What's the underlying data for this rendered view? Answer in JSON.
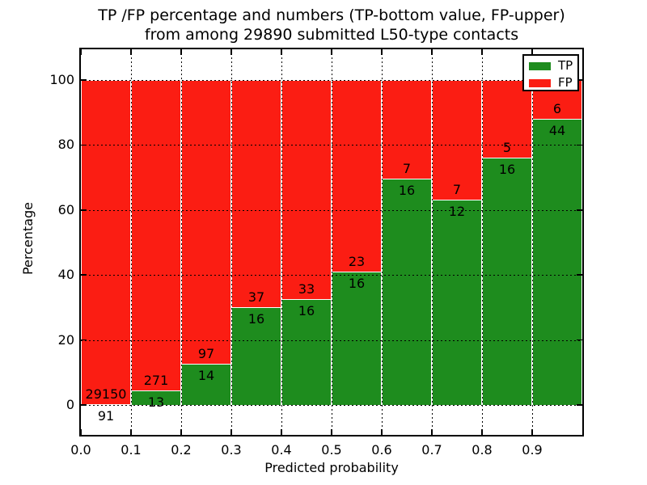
{
  "figure": {
    "title_line1": "TP /FP percentage and numbers (TP-bottom value, FP-upper)",
    "title_line2": "from among 29890 submitted L50-type contacts",
    "xlabel": "Predicted probability",
    "ylabel": "Percentage"
  },
  "legend": {
    "items": [
      {
        "label": "TP",
        "color": "#1e8c1e"
      },
      {
        "label": "FP",
        "color": "#fb1d13"
      }
    ]
  },
  "chart_data": {
    "type": "bar",
    "subtype": "stacked-percentage",
    "title": "TP /FP percentage and numbers (TP-bottom value, FP-upper) from among 29890 submitted L50-type contacts",
    "xlabel": "Predicted probability",
    "ylabel": "Percentage",
    "total_contacts": 29890,
    "bins": [
      "0.0-0.1",
      "0.1-0.2",
      "0.2-0.3",
      "0.3-0.4",
      "0.4-0.5",
      "0.5-0.6",
      "0.6-0.7",
      "0.7-0.8",
      "0.8-0.9",
      "0.9-1.0"
    ],
    "xticks": [
      "0.0",
      "0.1",
      "0.2",
      "0.3",
      "0.4",
      "0.5",
      "0.6",
      "0.7",
      "0.8",
      "0.9"
    ],
    "yticks": [
      0,
      20,
      40,
      60,
      80,
      100
    ],
    "xlim": [
      0,
      1
    ],
    "ylim": [
      -10,
      110
    ],
    "grid": "dotted-black",
    "legend_position": "upper-right",
    "series": [
      {
        "name": "TP",
        "color": "#1e8c1e",
        "position": "bottom",
        "values": [
          91,
          13,
          14,
          16,
          16,
          16,
          16,
          12,
          16,
          44
        ]
      },
      {
        "name": "FP",
        "color": "#fb1d13",
        "position": "top",
        "values": [
          29150,
          271,
          97,
          37,
          33,
          23,
          7,
          7,
          5,
          6
        ]
      }
    ],
    "tp_percent_derived": [
      0.31,
      4.58,
      12.61,
      30.19,
      32.65,
      41.03,
      69.57,
      63.16,
      76.19,
      88.0
    ]
  }
}
